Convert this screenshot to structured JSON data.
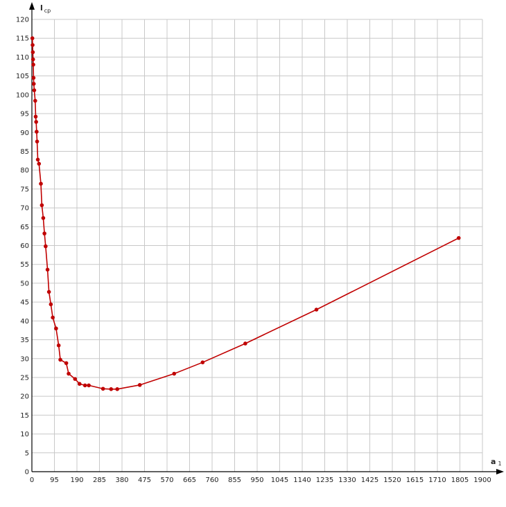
{
  "chart_data": {
    "type": "line",
    "xlabel": "a",
    "xlabel_sub": "1",
    "ylabel": "l",
    "ylabel_sub": "cp",
    "x_ticks": [
      0,
      95,
      190,
      285,
      380,
      475,
      570,
      665,
      760,
      855,
      950,
      1045,
      1140,
      1235,
      1330,
      1425,
      1520,
      1615,
      1710,
      1805,
      1900
    ],
    "y_ticks": [
      0,
      5,
      10,
      15,
      20,
      25,
      30,
      35,
      40,
      45,
      50,
      55,
      60,
      65,
      70,
      75,
      80,
      85,
      90,
      95,
      100,
      105,
      110,
      115,
      120
    ],
    "xlim": [
      0,
      1900
    ],
    "ylim": [
      0,
      120
    ],
    "grid": true,
    "colors": {
      "line": "#c00000",
      "marker": "#c00000",
      "grid": "#c8c8c8",
      "axis": "#000000"
    },
    "series": [
      {
        "x": [
          2,
          3,
          4,
          5,
          6,
          7,
          8,
          10,
          14,
          16,
          18,
          20,
          22,
          25,
          30,
          38,
          42,
          48,
          53,
          58,
          66,
          72,
          80,
          88,
          102,
          113,
          120,
          145,
          155,
          182,
          201,
          224,
          240,
          300,
          334,
          360,
          455,
          600,
          720,
          900,
          1200,
          1800
        ],
        "y": [
          115,
          113.2,
          111.3,
          109.4,
          108,
          104.5,
          102.9,
          101.2,
          98.4,
          94.2,
          92.8,
          90.2,
          87.6,
          82.8,
          81.7,
          76.4,
          70.7,
          67.3,
          63.2,
          59.8,
          53.6,
          47.7,
          44.4,
          40.9,
          38,
          33.5,
          29.7,
          28.8,
          26,
          24.6,
          23.3,
          22.9,
          22.9,
          22,
          21.9,
          21.9,
          23,
          26,
          29,
          34,
          43,
          62
        ]
      }
    ]
  }
}
